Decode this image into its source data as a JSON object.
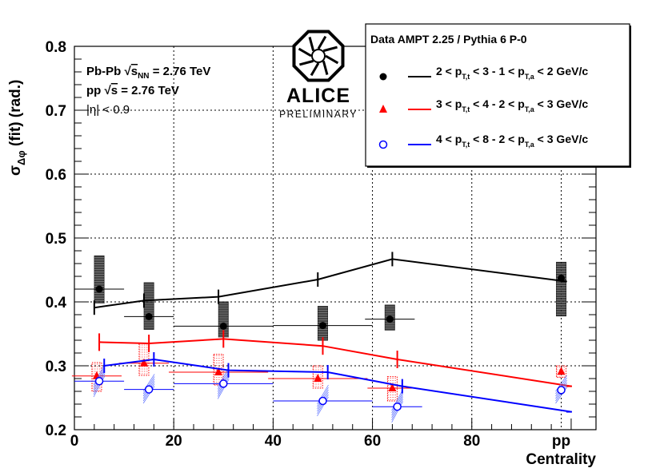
{
  "chart_data": {
    "type": "scatter",
    "title": "",
    "xlabel": "Centrality",
    "ylabel": "σ_Δφ (fit) (rad.)",
    "ylabel_parts": {
      "sigma": "σ",
      "sub": "Δφ",
      "rest": " (fit) (rad.)"
    },
    "xlim": [
      0,
      105
    ],
    "ylim": [
      0.2,
      0.8
    ],
    "x_ticks": [
      0,
      20,
      40,
      60,
      80
    ],
    "x_tick_labels": [
      "0",
      "20",
      "40",
      "60",
      "80"
    ],
    "pp_label": "pp",
    "pp_x": 98,
    "y_ticks": [
      0.2,
      0.3,
      0.4,
      0.5,
      0.6,
      0.7,
      0.8
    ],
    "y_tick_labels": [
      "0.2",
      "0.3",
      "0.4",
      "0.5",
      "0.6",
      "0.7",
      "0.8"
    ],
    "grid": true,
    "series": [
      {
        "name": "2 < pT,t < 3 - 1 < pT,a < 2 GeV/c",
        "color": "#000000",
        "marker": "circle",
        "x": [
          5,
          15,
          30,
          50,
          63.5,
          98
        ],
        "xerr": [
          5,
          5,
          10,
          10,
          5,
          0
        ],
        "values": [
          0.42,
          0.377,
          0.362,
          0.363,
          0.373,
          0.437
        ],
        "sys_low": [
          0.398,
          0.357,
          0.345,
          0.34,
          0.356,
          0.378
        ],
        "sys_high": [
          0.472,
          0.43,
          0.4,
          0.393,
          0.395,
          0.462
        ],
        "model_x": [
          4,
          14,
          29,
          49,
          64,
          99
        ],
        "model_values": [
          0.391,
          0.402,
          0.408,
          0.435,
          0.467,
          0.432
        ]
      },
      {
        "name": "3 < pT,t < 4 - 2 < pT,a < 3 GeV/c",
        "color": "#ff0000",
        "marker": "triangle",
        "x": [
          4.5,
          14,
          29,
          49,
          64,
          98
        ],
        "xerr": [
          5,
          5,
          10,
          10,
          5,
          0
        ],
        "values": [
          0.284,
          0.304,
          0.29,
          0.28,
          0.265,
          0.291
        ],
        "sys_low": [
          0.26,
          0.285,
          0.27,
          0.265,
          0.245,
          0.282
        ],
        "sys_high": [
          0.305,
          0.335,
          0.318,
          0.3,
          0.283,
          0.3
        ],
        "model_x": [
          5,
          15,
          30,
          50,
          65,
          100
        ],
        "model_values": [
          0.337,
          0.335,
          0.342,
          0.331,
          0.31,
          0.268
        ]
      },
      {
        "name": "4 < pT,t < 8 - 2 < pT,a < 3 GeV/c",
        "color": "#0000ff",
        "marker": "open-circle",
        "x": [
          5,
          15,
          30,
          50,
          65,
          98
        ],
        "xerr": [
          5,
          5,
          10,
          10,
          5,
          0
        ],
        "values": [
          0.276,
          0.263,
          0.272,
          0.245,
          0.236,
          0.262
        ],
        "sys_low": [
          0.265,
          0.255,
          0.262,
          0.235,
          0.225,
          0.255
        ],
        "sys_high": [
          0.288,
          0.272,
          0.283,
          0.255,
          0.248,
          0.27
        ],
        "model_x": [
          6,
          16,
          31,
          51,
          66,
          100
        ],
        "model_values": [
          0.3,
          0.31,
          0.293,
          0.29,
          0.268,
          0.228
        ]
      }
    ],
    "legend": {
      "placement": "top-right",
      "header": "Data  AMPT 2.25 / Pythia 6 P-0",
      "entries": [
        {
          "t": [
            "2 < p",
            "T,t",
            " < 3 - 1 < p",
            "T,a",
            " < 2  GeV/c"
          ]
        },
        {
          "t": [
            "3 < p",
            "T,t",
            " < 4 - 2 < p",
            "T,a",
            " < 3  GeV/c"
          ]
        },
        {
          "t": [
            "4 < p",
            "T,t",
            " < 8 - 2 < p",
            "T,a",
            " < 3  GeV/c"
          ]
        }
      ]
    },
    "annotations": {
      "line1": [
        "Pb-Pb ",
        "√",
        "s",
        "NN",
        " = 2.76 TeV"
      ],
      "line2": [
        "pp ",
        "√",
        "s",
        " = 2.76 TeV"
      ],
      "line3": [
        "|η| < 0.9"
      ]
    },
    "logo": {
      "name": "ALICE",
      "sub": "PRELIMINARY"
    }
  }
}
